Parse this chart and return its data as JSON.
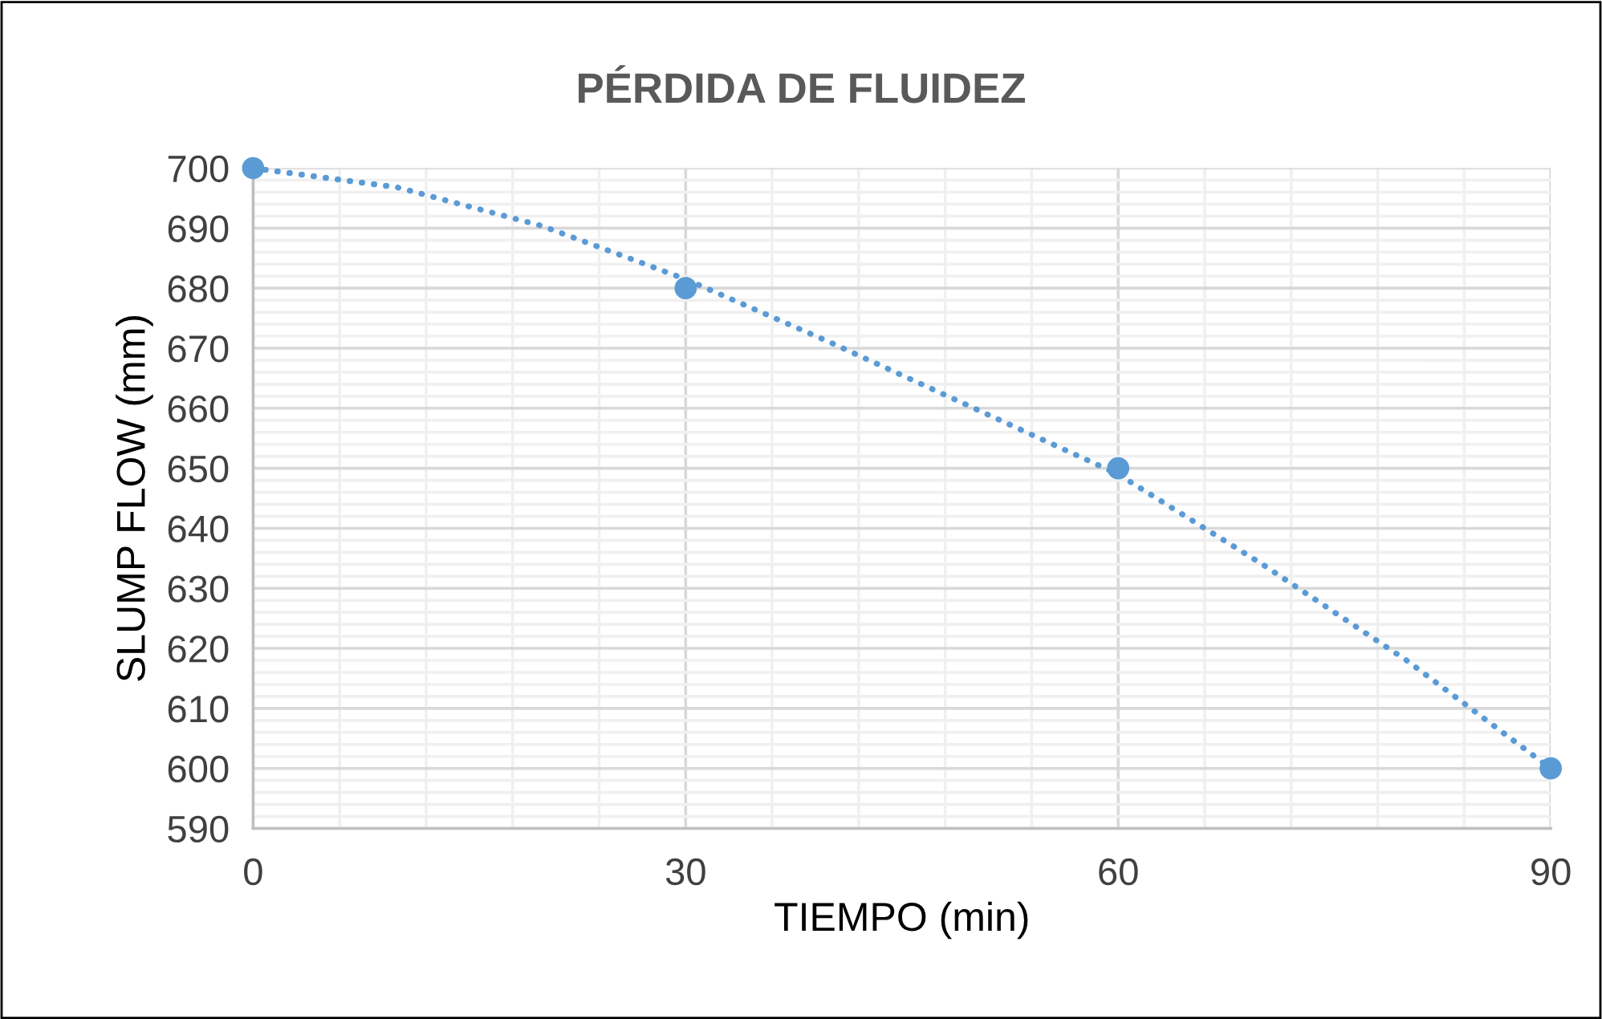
{
  "chart_data": {
    "type": "scatter",
    "title": "PÉRDIDA DE FLUIDEZ",
    "xlabel": "TIEMPO (min)",
    "ylabel": "SLUMP FLOW (mm)",
    "xlim": [
      0,
      90
    ],
    "xticks": [
      0,
      30,
      60,
      90
    ],
    "ylim": [
      590,
      700
    ],
    "yticks": [
      590,
      600,
      610,
      620,
      630,
      640,
      650,
      660,
      670,
      680,
      690,
      700
    ],
    "grid": true,
    "legend": false,
    "series": [
      {
        "marker": "circle",
        "color": "#5b9bd5",
        "x": [
          0,
          30,
          60,
          90
        ],
        "values": [
          700,
          680,
          650,
          600
        ]
      },
      {
        "type": "line",
        "marker": "none",
        "line_style": "dotted",
        "color": "#5b9bd5",
        "x": [
          0,
          10,
          20,
          30,
          40,
          50,
          60,
          70,
          80,
          90
        ],
        "values": [
          700,
          696.8,
          690.4,
          681.5,
          671,
          660,
          649,
          634,
          618,
          600
        ]
      }
    ]
  }
}
